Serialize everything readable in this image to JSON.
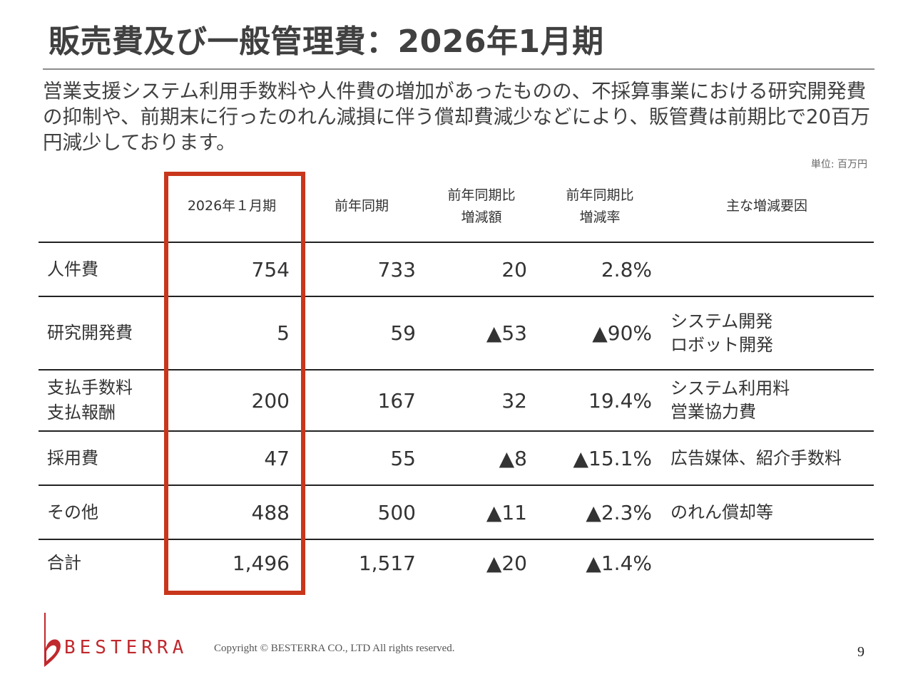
{
  "slide": {
    "title": "販売費及び一般管理費：2026年1月期",
    "summary": "営業支援システム利用手数料や人件費の増加があったものの、不採算事業における研究開発費の抑制や、前期末に行ったのれん減損に伴う償却費減少などにより、販管費は前期比で20百万円減少しております。",
    "unit": "単位: 百万円",
    "page_number": "9"
  },
  "table": {
    "headers": {
      "current": "2026年１月期",
      "prior": "前年同期",
      "diff_line1": "前年同期比",
      "diff_line2": "増減額",
      "rate_line1": "前年同期比",
      "rate_line2": "増減率",
      "reason": "主な増減要因"
    },
    "rows": [
      {
        "name1": "人件費",
        "name2": "",
        "current": "754",
        "prior": "733",
        "diff": "20",
        "rate": "2.8%",
        "reason1": "",
        "reason2": ""
      },
      {
        "name1": "研究開発費",
        "name2": "",
        "current": "5",
        "prior": "59",
        "diff": "▲53",
        "rate": "▲90%",
        "reason1": "システム開発",
        "reason2": "ロボット開発"
      },
      {
        "name1": "支払手数料",
        "name2": "支払報酬",
        "current": "200",
        "prior": "167",
        "diff": "32",
        "rate": "19.4%",
        "reason1": "システム利用料",
        "reason2": "営業協力費"
      },
      {
        "name1": "採用費",
        "name2": "",
        "current": "47",
        "prior": "55",
        "diff": "▲8",
        "rate": "▲15.1%",
        "reason1": "広告媒体、紹介手数料",
        "reason2": ""
      },
      {
        "name1": "その他",
        "name2": "",
        "current": "488",
        "prior": "500",
        "diff": "▲11",
        "rate": "▲2.3%",
        "reason1": "のれん償却等",
        "reason2": ""
      },
      {
        "name1": "合計",
        "name2": "",
        "current": "1,496",
        "prior": "1,517",
        "diff": "▲20",
        "rate": "▲1.4%",
        "reason1": "",
        "reason2": ""
      }
    ]
  },
  "footer": {
    "brand": "BESTERRA",
    "copyright": "Copyright © BESTERRA CO., LTD All rights reserved."
  },
  "colors": {
    "highlight": "#c8361b",
    "logo": "#c0282d",
    "title": "#404040"
  }
}
